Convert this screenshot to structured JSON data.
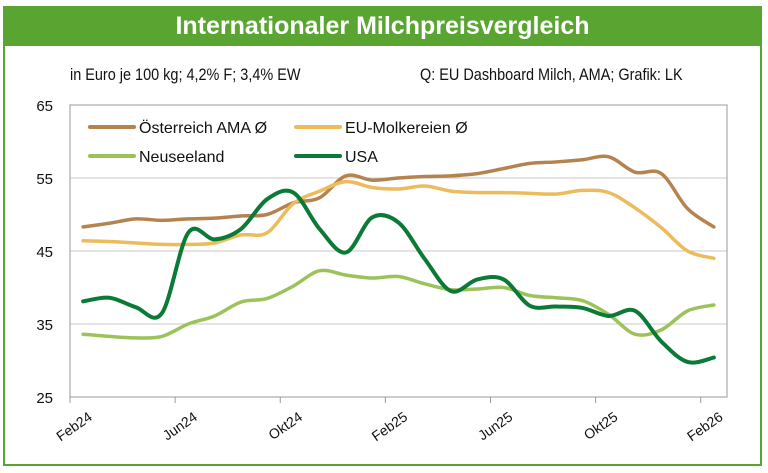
{
  "header": {
    "title": "Internationaler Milchpreisvergleich"
  },
  "subtitle_left": "in Euro je 100 kg; 4,2% F; 3,4% EW",
  "subtitle_right": "Q: EU Dashboard Milch, AMA; Grafik: LK",
  "chart_data": {
    "type": "line",
    "title": "Internationaler Milchpreisvergleich",
    "ylabel": "",
    "xlabel": "",
    "ylim": [
      25,
      65
    ],
    "yticks": [
      "25",
      "35",
      "45",
      "55",
      "65"
    ],
    "grid": "horizontal",
    "legend_position": "top-left",
    "x": [
      "Feb24",
      "Mar24",
      "Apr24",
      "May24",
      "Jun24",
      "Jul24",
      "Aug24",
      "Sep24",
      "Okt24",
      "Nov24",
      "Dez24",
      "Jan25",
      "Feb25",
      "Mar25",
      "Apr25",
      "May25",
      "Jun25",
      "Jul25",
      "Aug25",
      "Sep25",
      "Okt25",
      "Nov25",
      "Dez25",
      "Jan26",
      "Feb26"
    ],
    "xtick_labels": [
      "Feb24",
      "Jun24",
      "Okt24",
      "Feb25",
      "Jun25",
      "Okt25",
      "Feb26"
    ],
    "series": [
      {
        "name": "Österreich AMA Ø",
        "color": "#b5834f",
        "values": [
          48.3,
          48.8,
          49.4,
          49.2,
          49.4,
          49.5,
          49.8,
          50.0,
          51.6,
          52.3,
          55.3,
          54.7,
          55.0,
          55.2,
          55.3,
          55.6,
          56.3,
          57.0,
          57.2,
          57.5,
          57.9,
          55.8,
          55.6,
          50.8,
          48.3
        ]
      },
      {
        "name": "EU-Molkereien Ø",
        "color": "#ecbb5c",
        "values": [
          46.4,
          46.3,
          46.1,
          45.9,
          45.9,
          46.1,
          47.2,
          47.5,
          51.5,
          53.2,
          54.5,
          53.7,
          53.5,
          53.9,
          53.2,
          53.0,
          53.0,
          52.9,
          52.8,
          53.3,
          53.0,
          50.9,
          48.2,
          45.0,
          44.0
        ]
      },
      {
        "name": "Neuseeland",
        "color": "#9cc35a",
        "values": [
          33.6,
          33.3,
          33.1,
          33.3,
          35.0,
          36.1,
          38.0,
          38.5,
          40.2,
          42.3,
          41.7,
          41.3,
          41.5,
          40.5,
          39.7,
          39.8,
          40.0,
          38.9,
          38.6,
          38.2,
          36.3,
          33.6,
          34.2,
          36.8,
          37.6
        ]
      },
      {
        "name": "USA",
        "color": "#0a7a36",
        "values": [
          38.1,
          38.6,
          37.3,
          36.5,
          47.5,
          46.6,
          48.0,
          52.1,
          53.0,
          48.0,
          44.8,
          49.6,
          48.9,
          43.9,
          39.5,
          41.1,
          41.1,
          37.5,
          37.4,
          37.2,
          36.1,
          36.8,
          32.6,
          29.8,
          30.4
        ]
      }
    ]
  }
}
